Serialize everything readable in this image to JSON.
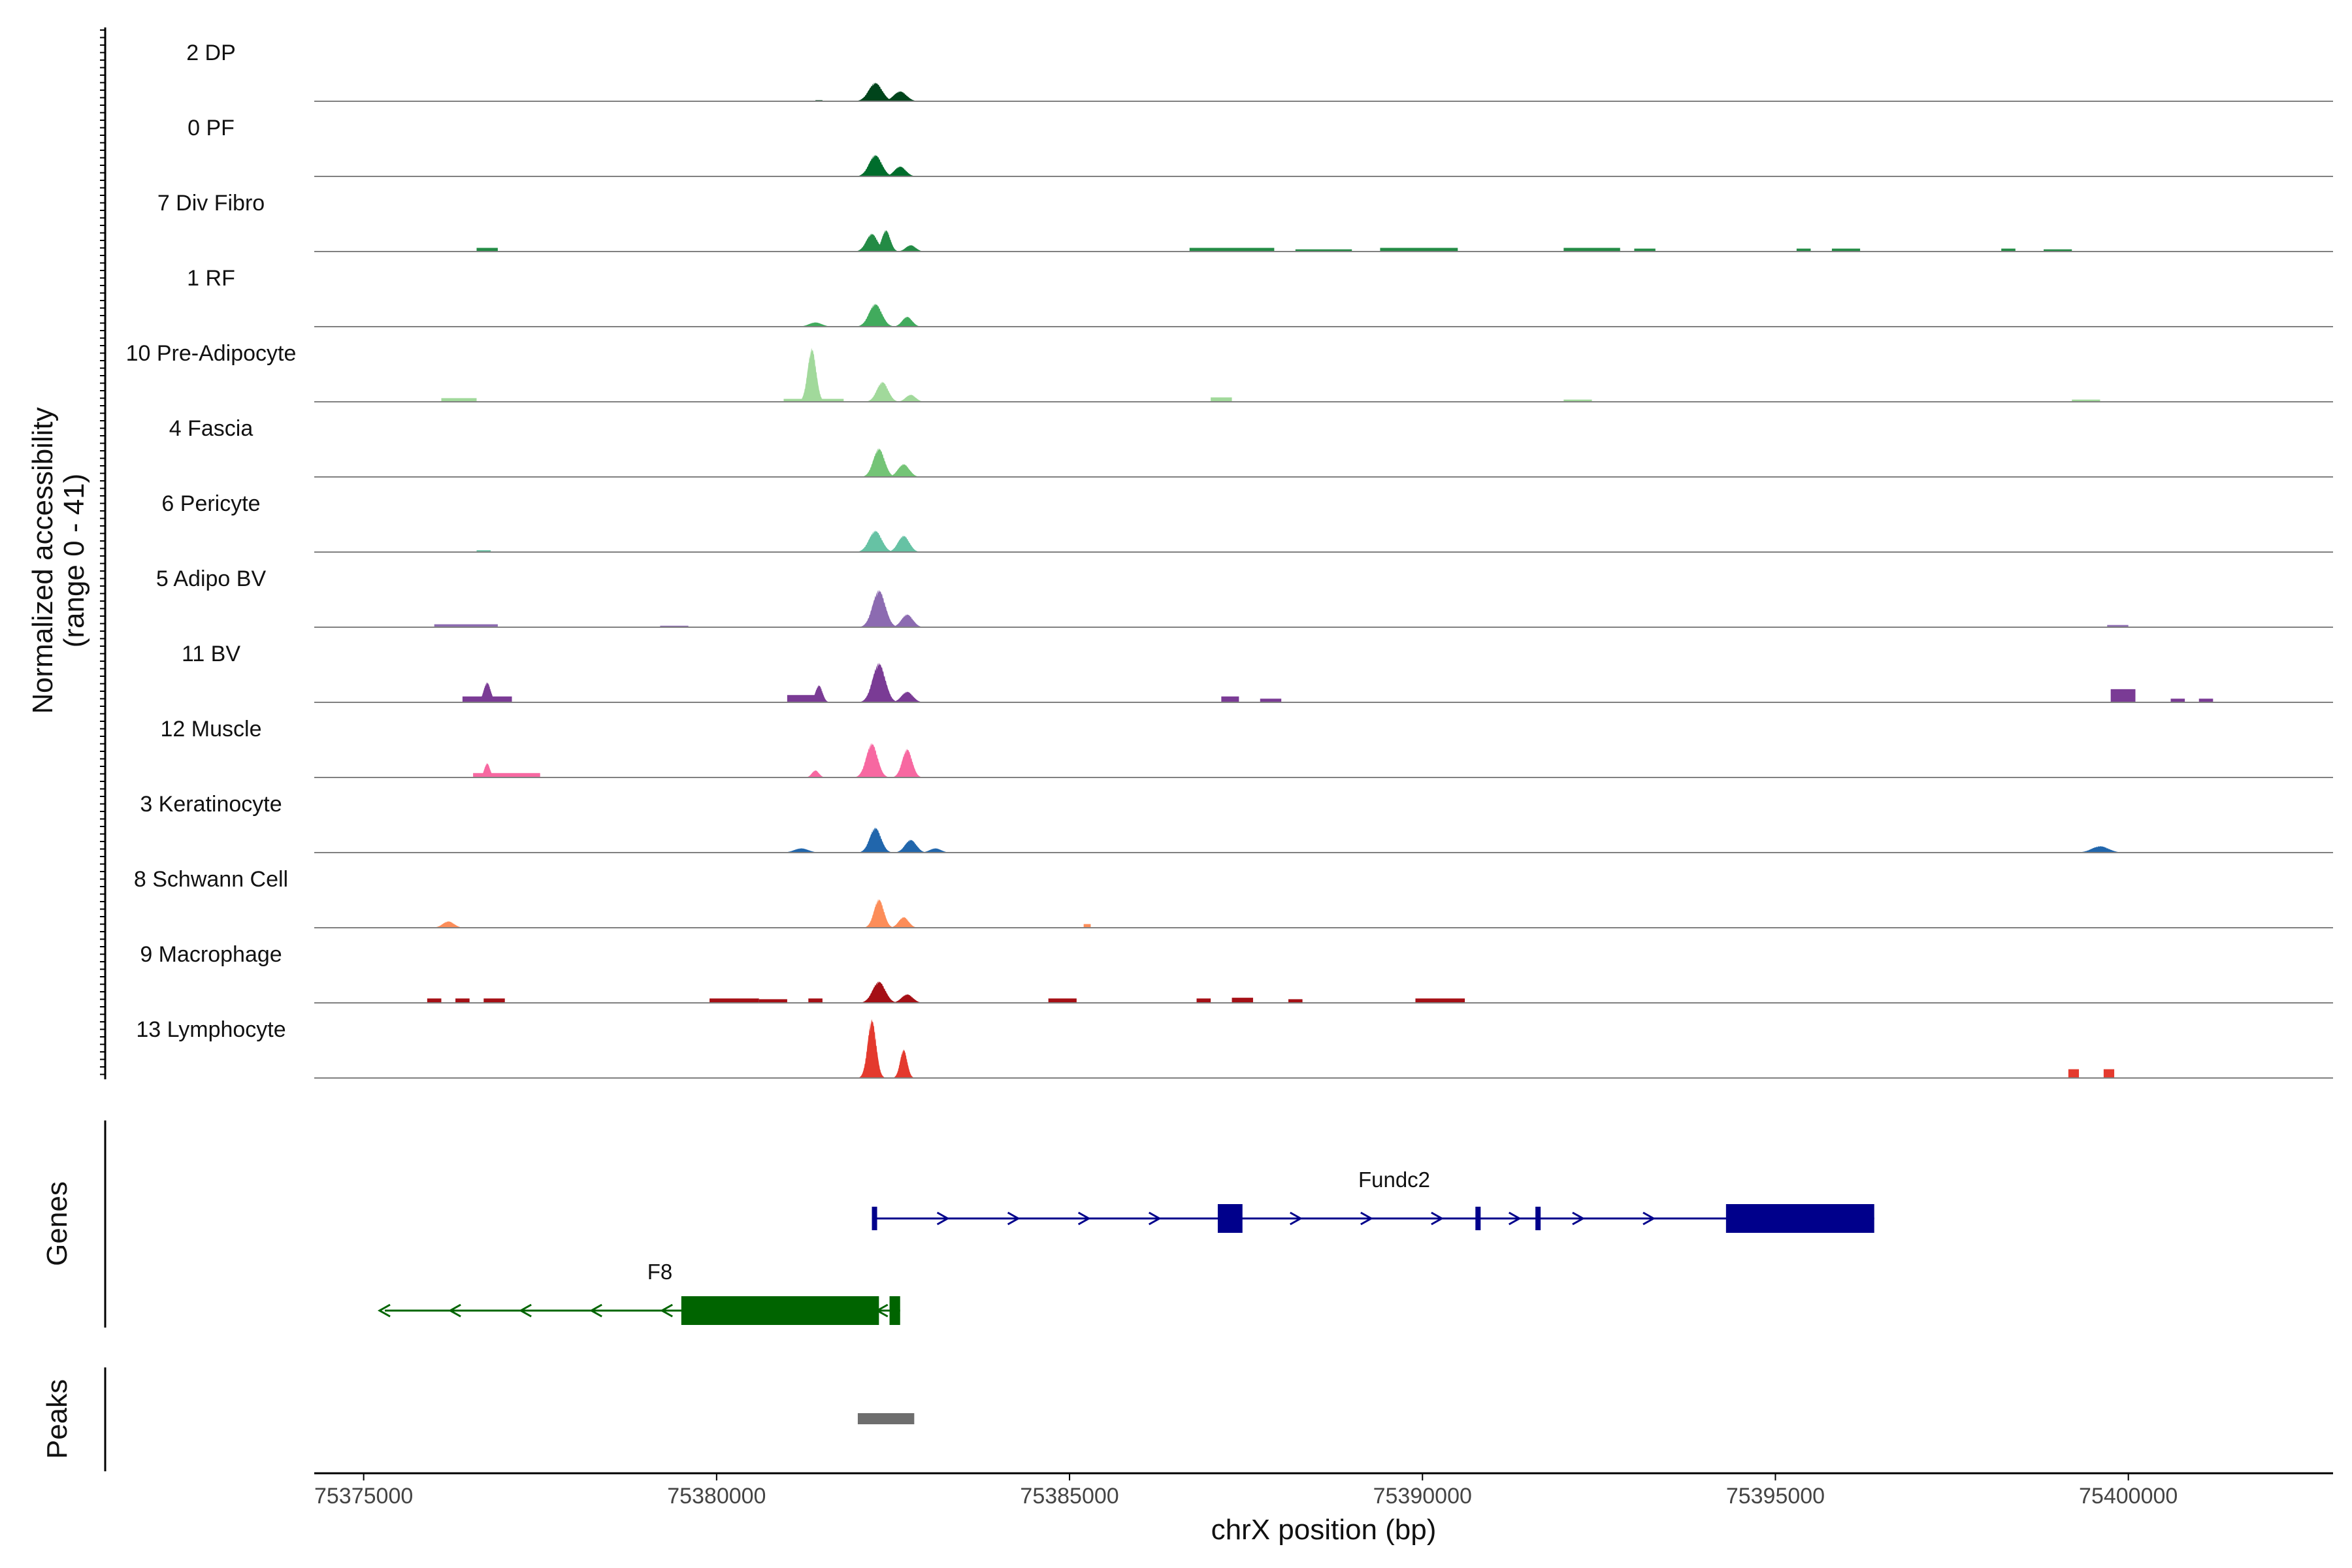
{
  "chart_data": {
    "type": "area",
    "title": "",
    "chromosome": "chrX",
    "xlabel": "chrX position (bp)",
    "ylabel_line1": "Normalized accessibility",
    "ylabel_line2": "(range 0 - 41)",
    "y_range": [
      0,
      41
    ],
    "xlim": [
      75374300,
      75402900
    ],
    "x_ticks": [
      75375000,
      75380000,
      75385000,
      75390000,
      75395000,
      75400000
    ],
    "x_tick_labels": [
      "75375000",
      "75380000",
      "75385000",
      "75390000",
      "75395000",
      "75400000"
    ],
    "genes_label": "Genes",
    "peaks_label": "Peaks",
    "series": [
      {
        "name": "2 DP",
        "color": "#00441b",
        "peaks": [
          [
            75382250,
            26,
            95
          ],
          [
            75382600,
            14,
            90
          ]
        ],
        "blocks": [
          [
            75381400,
            75381500,
            1.5
          ]
        ]
      },
      {
        "name": "0 PF",
        "color": "#006d2c",
        "peaks": [
          [
            75382250,
            30,
            90
          ],
          [
            75382600,
            14,
            80
          ]
        ],
        "blocks": []
      },
      {
        "name": "7 Div Fibro",
        "color": "#238b45",
        "peaks": [
          [
            75382200,
            25,
            80
          ],
          [
            75382400,
            30,
            60
          ],
          [
            75382750,
            9,
            70
          ]
        ],
        "blocks": [
          [
            75376600,
            75376900,
            5
          ],
          [
            75386700,
            75387900,
            5
          ],
          [
            75388200,
            75389000,
            3
          ],
          [
            75389400,
            75390500,
            5
          ],
          [
            75392000,
            75392800,
            5
          ],
          [
            75393000,
            75393300,
            4
          ],
          [
            75395300,
            75395500,
            4
          ],
          [
            75395800,
            75396200,
            4
          ],
          [
            75398200,
            75398400,
            4
          ],
          [
            75398800,
            75399200,
            3
          ]
        ]
      },
      {
        "name": "1 RF",
        "color": "#41ab5d",
        "peaks": [
          [
            75382250,
            32,
            90
          ],
          [
            75382700,
            14,
            70
          ],
          [
            75381400,
            6,
            90
          ]
        ],
        "blocks": []
      },
      {
        "name": "10 Pre-Adipocyte",
        "color": "#a1d99b",
        "peaks": [
          [
            75381350,
            75,
            60
          ],
          [
            75382350,
            28,
            80
          ],
          [
            75382750,
            10,
            70
          ]
        ],
        "blocks": [
          [
            75376100,
            75376600,
            5
          ],
          [
            75380950,
            75381800,
            4
          ],
          [
            75387000,
            75387300,
            6
          ],
          [
            75392000,
            75392400,
            3
          ],
          [
            75399200,
            75399600,
            3
          ]
        ]
      },
      {
        "name": "4 Fascia",
        "color": "#74c476",
        "peaks": [
          [
            75382300,
            40,
            80
          ],
          [
            75382650,
            18,
            80
          ]
        ],
        "blocks": []
      },
      {
        "name": "6 Pericyte",
        "color": "#66c2a4",
        "peaks": [
          [
            75382250,
            30,
            90
          ],
          [
            75382650,
            23,
            80
          ]
        ],
        "blocks": [
          [
            75376600,
            75376800,
            2.5
          ]
        ]
      },
      {
        "name": "5 Adipo BV",
        "color": "#8c6bb1",
        "peaks": [
          [
            75382300,
            52,
            90
          ],
          [
            75382700,
            18,
            80
          ]
        ],
        "blocks": [
          [
            75376000,
            75376900,
            4
          ],
          [
            75379200,
            75379600,
            2
          ],
          [
            75399700,
            75400000,
            3
          ]
        ]
      },
      {
        "name": "11 BV",
        "color": "#7a3b95",
        "peaks": [
          [
            75382300,
            55,
            90
          ],
          [
            75382700,
            15,
            80
          ],
          [
            75376750,
            28,
            50
          ],
          [
            75381450,
            24,
            50
          ]
        ],
        "blocks": [
          [
            75376400,
            75377100,
            8
          ],
          [
            75381000,
            75381500,
            10
          ],
          [
            75387150,
            75387400,
            8
          ],
          [
            75387700,
            75388000,
            5
          ],
          [
            75399750,
            75400100,
            18
          ],
          [
            75400600,
            75400800,
            5
          ],
          [
            75401000,
            75401200,
            5
          ]
        ]
      },
      {
        "name": "12 Muscle",
        "color": "#f768a1",
        "peaks": [
          [
            75382200,
            48,
            80
          ],
          [
            75382700,
            40,
            70
          ],
          [
            75376750,
            20,
            40
          ],
          [
            75381400,
            10,
            50
          ]
        ],
        "blocks": [
          [
            75376550,
            75377500,
            6
          ]
        ]
      },
      {
        "name": "3 Keratinocyte",
        "color": "#2166ac",
        "peaks": [
          [
            75382250,
            35,
            80
          ],
          [
            75382750,
            18,
            80
          ],
          [
            75383100,
            6,
            80
          ],
          [
            75381200,
            6,
            100
          ],
          [
            75399600,
            9,
            120
          ]
        ],
        "blocks": []
      },
      {
        "name": "8 Schwann Cell",
        "color": "#fc8d59",
        "peaks": [
          [
            75382300,
            40,
            70
          ],
          [
            75382650,
            15,
            70
          ],
          [
            75376200,
            9,
            80
          ]
        ],
        "blocks": [
          [
            75385200,
            75385300,
            5
          ]
        ]
      },
      {
        "name": "9 Macrophage",
        "color": "#a50f15",
        "peaks": [
          [
            75382300,
            30,
            90
          ],
          [
            75382700,
            12,
            80
          ]
        ],
        "blocks": [
          [
            75375900,
            75376100,
            6
          ],
          [
            75376300,
            75376500,
            6
          ],
          [
            75376700,
            75377000,
            6
          ],
          [
            75379900,
            75380600,
            6
          ],
          [
            75380600,
            75381000,
            5
          ],
          [
            75381300,
            75381500,
            6
          ],
          [
            75384700,
            75385100,
            6
          ],
          [
            75386800,
            75387000,
            6
          ],
          [
            75387300,
            75387600,
            7
          ],
          [
            75388100,
            75388300,
            5
          ],
          [
            75389900,
            75390600,
            6
          ]
        ]
      },
      {
        "name": "13 Lymphocyte",
        "color": "#e43a2e",
        "peaks": [
          [
            75382200,
            82,
            60
          ],
          [
            75382650,
            40,
            50
          ]
        ],
        "blocks": [
          [
            75399150,
            75399300,
            12
          ],
          [
            75399650,
            75399800,
            12
          ]
        ]
      }
    ],
    "genes": [
      {
        "name": "Fundc2",
        "strand": "+",
        "color": "#00008b",
        "start": 75382200,
        "end": 75396400,
        "exons": [
          [
            75382200,
            75382260,
            "thin"
          ],
          [
            75387100,
            75387450,
            "thick"
          ],
          [
            75390750,
            75390800,
            "thin"
          ],
          [
            75391600,
            75391700,
            "thin"
          ],
          [
            75394300,
            75396400,
            "thick"
          ]
        ],
        "arrows": [
          75383200,
          75384200,
          75385200,
          75386200,
          75388200,
          75389200,
          75390200,
          75391300,
          75392200,
          75393200
        ]
      },
      {
        "name": "F8",
        "strand": "-",
        "color": "#006400",
        "start": 75375300,
        "end": 75382600,
        "exons": [
          [
            75379500,
            75382300,
            "thick"
          ],
          [
            75382450,
            75382600,
            "thick"
          ]
        ],
        "arrows": [
          75375300,
          75376300,
          75377300,
          75378300,
          75379300,
          75382350
        ]
      }
    ],
    "peaks": [
      [
        75382000,
        75382800
      ]
    ]
  }
}
